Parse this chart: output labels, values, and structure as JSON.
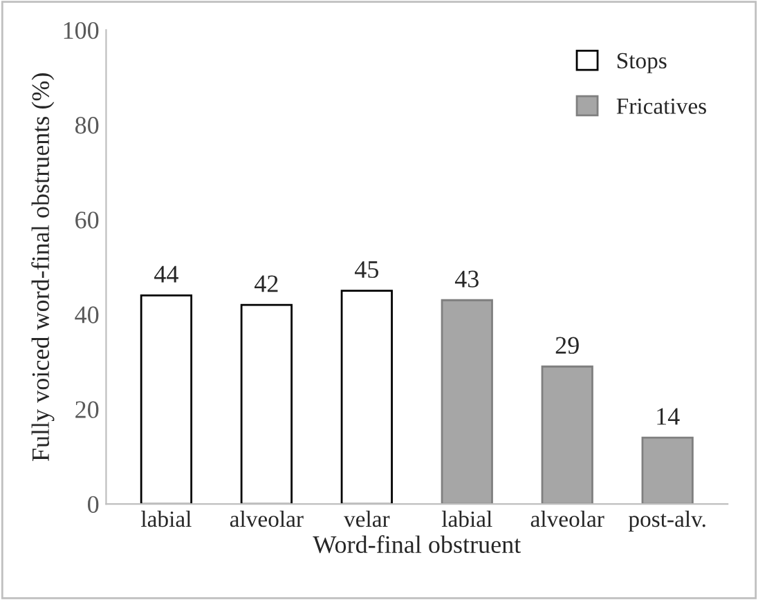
{
  "chart_data": {
    "type": "bar",
    "xlabel": "Word-final obstruent",
    "ylabel": "Fully voiced word-final obstruents (%)",
    "categories": [
      "labial",
      "alveolar",
      "velar",
      "labial",
      "alveolar",
      "post-alv."
    ],
    "series": [
      {
        "name": "Stops",
        "color": "#ffffff",
        "values": [
          44,
          42,
          45,
          null,
          null,
          null
        ]
      },
      {
        "name": "Fricatives",
        "color": "#a6a6a6",
        "values": [
          null,
          null,
          null,
          43,
          29,
          14
        ]
      }
    ],
    "ylim": [
      0,
      100
    ],
    "yticks": [
      0,
      20,
      40,
      60,
      80,
      100
    ],
    "data_labels": true,
    "legend": "top right",
    "grid": false
  }
}
